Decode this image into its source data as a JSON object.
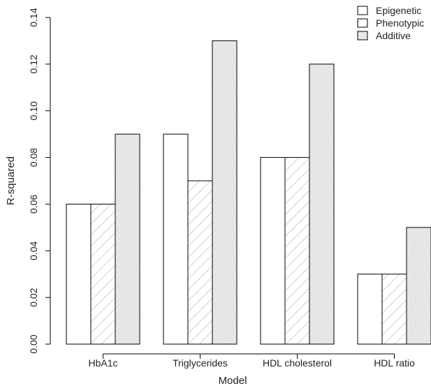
{
  "chart_data": {
    "type": "bar",
    "categories": [
      "HbA1c",
      "Triglycerides",
      "HDL cholesterol",
      "HDL ratio"
    ],
    "series": [
      {
        "name": "Epigenetic",
        "values": [
          0.06,
          0.09,
          0.08,
          0.03
        ],
        "pattern": "none",
        "fill": "#ffffff"
      },
      {
        "name": "Phenotypic",
        "values": [
          0.06,
          0.07,
          0.08,
          0.03
        ],
        "pattern": "hatch-sparse",
        "fill": "#ffffff"
      },
      {
        "name": "Additive",
        "values": [
          0.09,
          0.13,
          0.12,
          0.05
        ],
        "pattern": "hatch-dense",
        "fill": "#ececec"
      }
    ],
    "xlabel": "Model",
    "ylabel": "R-squared",
    "ylim": [
      0,
      0.14
    ],
    "yticks": [
      "0.00",
      "0.02",
      "0.04",
      "0.06",
      "0.08",
      "0.10",
      "0.12",
      "0.14"
    ],
    "grid": false,
    "legend_position": "top-right",
    "colors": {
      "bar_stroke": "#000000",
      "hatch": "#9a9a9a",
      "text": "#222222"
    }
  }
}
